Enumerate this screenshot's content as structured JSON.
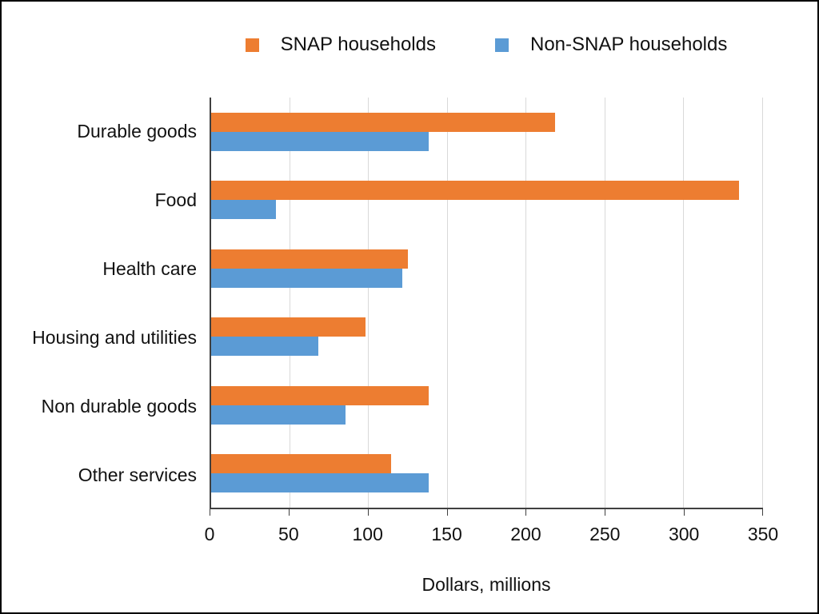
{
  "chart_data": {
    "type": "bar",
    "orientation": "horizontal",
    "title": "",
    "xlabel": "Dollars, millions",
    "ylabel": "",
    "xlim": [
      0,
      350
    ],
    "xticks": [
      0,
      50,
      100,
      150,
      200,
      250,
      300,
      350
    ],
    "grid": true,
    "legend_position": "top",
    "categories": [
      "Durable goods",
      "Food",
      "Health care",
      "Housing and utilities",
      "Non durable goods",
      "Other services"
    ],
    "series": [
      {
        "name": "SNAP households",
        "color": "#ED7D31",
        "values": [
          218,
          335,
          125,
          98,
          138,
          114
        ]
      },
      {
        "name": "Non-SNAP households",
        "color": "#5B9BD5",
        "values": [
          138,
          41,
          121,
          68,
          85,
          138
        ]
      }
    ]
  },
  "colors": {
    "snap_orange": "#ED7D31",
    "non_snap_blue": "#5B9BD5",
    "gridline": "#D9D9D9",
    "axis": "#404040",
    "background": "#FFFFFF",
    "frame_border": "#000000"
  }
}
